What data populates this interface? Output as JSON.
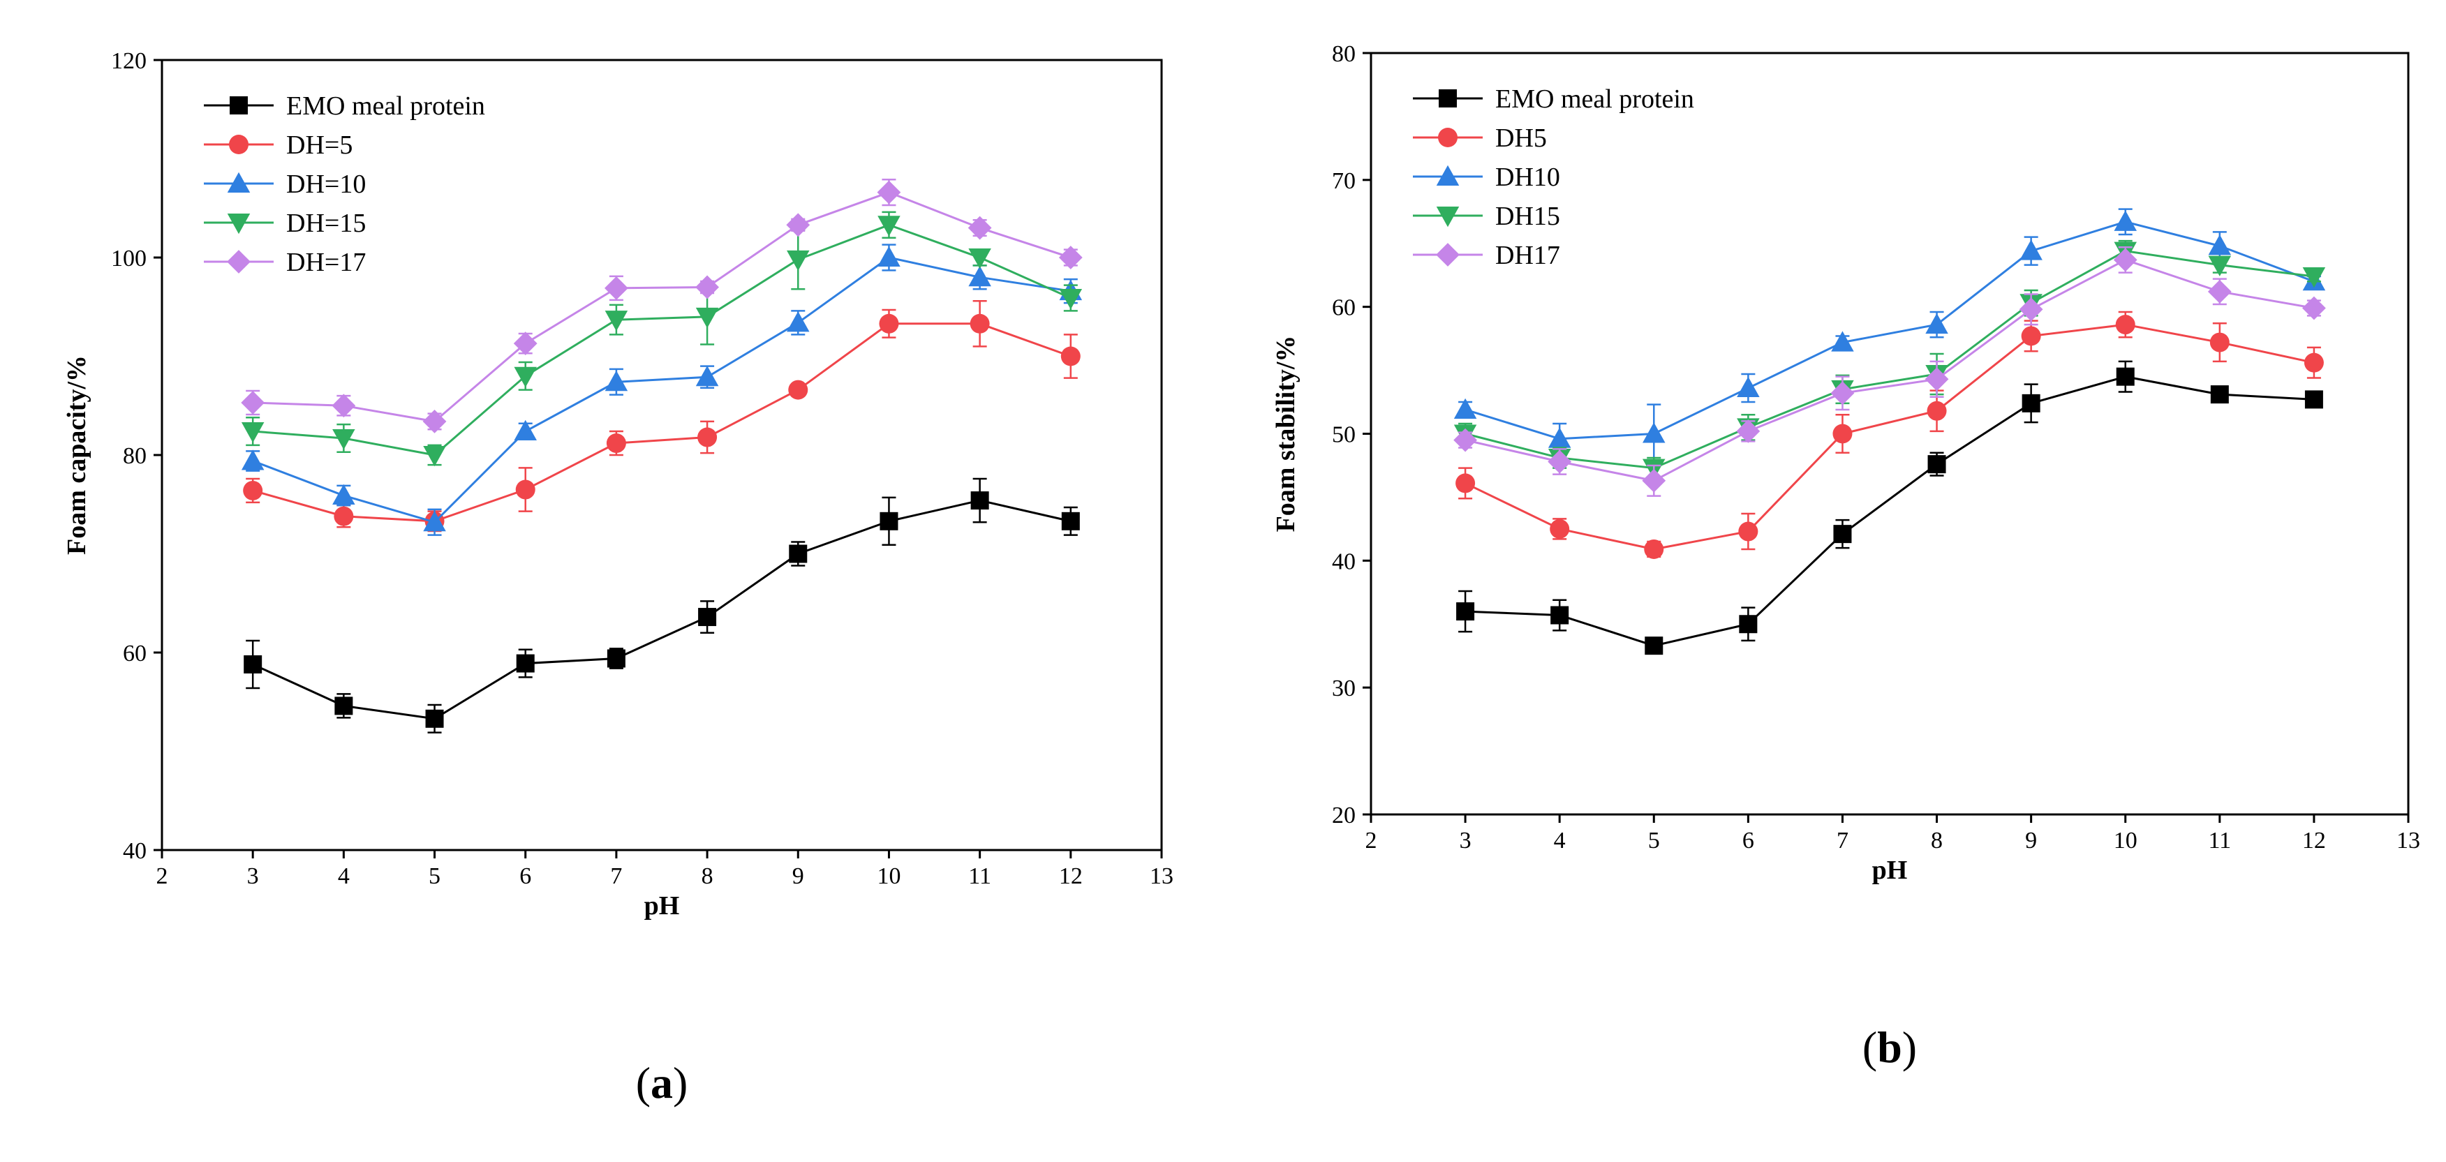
{
  "chart_data": [
    {
      "type": "line",
      "panel_label": "a",
      "title": "",
      "xlabel": "pH",
      "ylabel": "Foam capacity/%",
      "xlim": [
        2,
        13
      ],
      "ylim": [
        40,
        120
      ],
      "xticks": [
        2,
        3,
        4,
        5,
        6,
        7,
        8,
        9,
        10,
        11,
        12,
        13
      ],
      "yticks": [
        40,
        60,
        80,
        100,
        120
      ],
      "grid": false,
      "legend_position": "top-left",
      "x": [
        3,
        4,
        5,
        6,
        7,
        8,
        9,
        10,
        11,
        12
      ],
      "series": [
        {
          "name": "EMO meal protein",
          "color": "#000000",
          "marker": "square",
          "values": [
            58.8,
            54.6,
            53.3,
            58.9,
            59.4,
            63.6,
            70.0,
            73.3,
            75.4,
            73.3
          ],
          "errors": [
            2.4,
            1.2,
            1.4,
            1.4,
            1.0,
            1.6,
            1.2,
            2.4,
            2.2,
            1.4
          ]
        },
        {
          "name": "DH=5",
          "color": "#f0454a",
          "marker": "circle",
          "values": [
            76.4,
            73.8,
            73.3,
            76.5,
            81.2,
            81.8,
            86.6,
            93.3,
            93.3,
            90.0
          ],
          "errors": [
            1.2,
            1.1,
            1.0,
            2.2,
            1.2,
            1.6,
            0.6,
            1.4,
            2.3,
            2.2
          ]
        },
        {
          "name": "DH=10",
          "color": "#2f7fe0",
          "marker": "triangle-up",
          "values": [
            79.4,
            75.9,
            73.2,
            82.4,
            87.4,
            87.9,
            93.4,
            100.0,
            98.0,
            96.6
          ],
          "errors": [
            1.0,
            1.0,
            1.3,
            0.8,
            1.3,
            1.1,
            1.2,
            1.3,
            1.2,
            1.2
          ]
        },
        {
          "name": "DH=15",
          "color": "#2fae5e",
          "marker": "triangle-down",
          "values": [
            82.4,
            81.7,
            80.0,
            88.0,
            93.7,
            94.0,
            99.8,
            103.3,
            100.0,
            95.9
          ],
          "errors": [
            1.4,
            1.4,
            1.0,
            1.4,
            1.5,
            2.8,
            3.0,
            1.3,
            0.8,
            1.3
          ]
        },
        {
          "name": "DH=17",
          "color": "#c585e8",
          "marker": "diamond",
          "values": [
            85.3,
            85.0,
            83.4,
            91.3,
            96.9,
            97.0,
            103.3,
            106.6,
            103.0,
            100.0
          ],
          "errors": [
            1.2,
            1.0,
            0.8,
            1.0,
            1.2,
            0.6,
            0.6,
            1.3,
            0.8,
            0.8
          ]
        }
      ]
    },
    {
      "type": "line",
      "panel_label": "b",
      "title": "",
      "xlabel": "pH",
      "ylabel": "Foam stability/%",
      "xlim": [
        2,
        13
      ],
      "ylim": [
        20,
        80
      ],
      "xticks": [
        2,
        3,
        4,
        5,
        6,
        7,
        8,
        9,
        10,
        11,
        12,
        13
      ],
      "yticks": [
        20,
        30,
        40,
        50,
        60,
        70,
        80
      ],
      "grid": false,
      "legend_position": "top-left",
      "x": [
        3,
        4,
        5,
        6,
        7,
        8,
        9,
        10,
        11,
        12
      ],
      "series": [
        {
          "name": "EMO meal protein",
          "color": "#000000",
          "marker": "square",
          "values": [
            36.0,
            35.7,
            33.3,
            35.0,
            42.1,
            47.6,
            52.4,
            54.5,
            53.1,
            52.7
          ],
          "errors": [
            1.6,
            1.2,
            0.6,
            1.3,
            1.1,
            0.9,
            1.5,
            1.2,
            0.4,
            0.4
          ]
        },
        {
          "name": "DH5",
          "color": "#f0454a",
          "marker": "circle",
          "values": [
            46.1,
            42.5,
            40.9,
            42.3,
            50.0,
            51.8,
            57.7,
            58.6,
            57.2,
            55.6
          ],
          "errors": [
            1.2,
            0.8,
            0.6,
            1.4,
            1.5,
            1.6,
            1.2,
            1.0,
            1.5,
            1.2
          ]
        },
        {
          "name": "DH10",
          "color": "#2f7fe0",
          "marker": "triangle-up",
          "values": [
            51.9,
            49.6,
            50.0,
            53.6,
            57.2,
            58.6,
            64.4,
            66.7,
            64.8,
            62.0
          ],
          "errors": [
            0.6,
            1.2,
            2.3,
            1.1,
            0.5,
            1.0,
            1.1,
            1.0,
            1.1,
            0.4
          ]
        },
        {
          "name": "DH15",
          "color": "#2fae5e",
          "marker": "triangle-down",
          "values": [
            50.0,
            48.1,
            47.3,
            50.5,
            53.5,
            54.7,
            60.3,
            64.4,
            63.3,
            62.4
          ],
          "errors": [
            0.8,
            0.8,
            0.8,
            1.0,
            1.1,
            1.6,
            1.0,
            0.8,
            0.6,
            0.4
          ]
        },
        {
          "name": "DH17",
          "color": "#c585e8",
          "marker": "diamond",
          "values": [
            49.5,
            47.8,
            46.3,
            50.2,
            53.2,
            54.3,
            59.8,
            63.7,
            61.2,
            59.9
          ],
          "errors": [
            0.6,
            1.0,
            1.2,
            0.8,
            1.3,
            1.4,
            1.2,
            1.0,
            1.0,
            0.6
          ]
        }
      ]
    }
  ]
}
